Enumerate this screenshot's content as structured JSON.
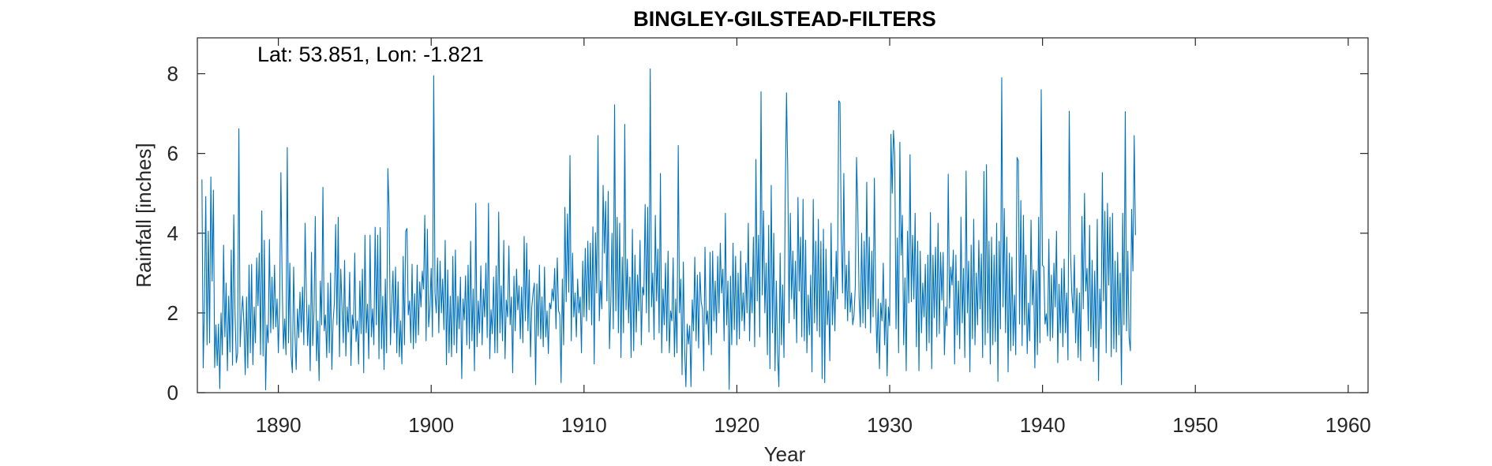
{
  "chart_data": {
    "type": "line",
    "title": "BINGLEY-GILSTEAD-FILTERS",
    "annotation": "Lat: 53.851, Lon: -1.821",
    "xlabel": "Year",
    "ylabel": "Rainfall [inches]",
    "xlim": [
      1884.7,
      1961.3
    ],
    "ylim": [
      0,
      8.9
    ],
    "xticks": [
      1890,
      1900,
      1910,
      1920,
      1930,
      1940,
      1950,
      1960
    ],
    "yticks": [
      0,
      2,
      4,
      6,
      8
    ],
    "grid": false,
    "box": true,
    "line_color": "#0072BD",
    "series": [
      {
        "x_start": 1885.0,
        "x_step": 0.08333,
        "values": [
          5.35,
          0.62,
          2.3,
          4.92,
          1.2,
          4.05,
          1.25,
          5.41,
          2.8,
          5.08,
          0.63,
          1.7,
          0.68,
          1.72,
          0.1,
          2.0,
          0.95,
          3.7,
          1.4,
          2.75,
          0.55,
          2.42,
          1.02,
          3.58,
          0.69,
          4.46,
          1.98,
          0.75,
          1.0,
          6.62,
          1.15,
          1.93,
          2.42,
          1.7,
          0.45,
          2.4,
          0.62,
          3.2,
          1.0,
          3.22,
          0.7,
          2.15,
          1.25,
          3.38,
          2.18,
          3.5,
          0.95,
          4.56,
          0.92,
          3.82,
          0.07,
          1.7,
          1.25,
          3.84,
          1.5,
          2.9,
          1.6,
          3.2,
          1.65,
          2.35,
          1.0,
          2.25,
          5.52,
          2.73,
          1.1,
          1.85,
          0.95,
          6.15,
          1.25,
          3.25,
          0.93,
          0.5,
          3.15,
          1.5,
          0.58,
          2.1,
          1.38,
          2.52,
          1.52,
          2.65,
          1.2,
          4.25,
          2.42,
          1.18,
          2.2,
          0.55,
          3.52,
          1.18,
          2.05,
          4.42,
          0.8,
          1.8,
          0.3,
          2.8,
          1.7,
          5.15,
          1.55,
          1.95,
          0.88,
          2.75,
          1.0,
          3.0,
          0.58,
          1.8,
          2.25,
          4.22,
          1.7,
          4.4,
          0.9,
          3.1,
          2.15,
          1.25,
          3.32,
          0.92,
          2.15,
          1.52,
          3.02,
          0.68,
          1.95,
          1.6,
          3.5,
          1.28,
          1.8,
          0.72,
          2.8,
          1.48,
          3.1,
          0.5,
          3.95,
          1.5,
          2.22,
          0.85,
          3.95,
          1.4,
          2.1,
          1.2,
          4.15,
          1.7,
          3.95,
          0.85,
          4.14,
          1.1,
          2.42,
          0.58,
          2.85,
          1.0,
          5.62,
          4.5,
          1.2,
          2.2,
          3.05,
          1.5,
          3.15,
          1.0,
          2.78,
          0.9,
          1.8,
          0.72,
          3.42,
          1.2,
          4.05,
          4.12,
          1.95,
          2.3,
          1.25,
          3.22,
          1.1,
          2.48,
          1.25,
          3.2,
          1.45,
          2.78,
          2.15,
          3.05,
          2.6,
          4.45,
          1.3,
          4.1,
          1.65,
          2.15,
          3.12,
          1.4,
          7.95,
          2.5,
          2.0,
          3.38,
          1.5,
          3.3,
          2.0,
          2.85,
          1.58,
          3.82,
          0.7,
          3.08,
          1.0,
          2.42,
          0.9,
          3.42,
          1.2,
          3.58,
          1.0,
          2.42,
          1.6,
          2.9,
          0.35,
          2.35,
          1.82,
          2.93,
          1.2,
          3.2,
          1.1,
          3.8,
          1.3,
          2.6,
          0.55,
          4.75,
          1.15,
          2.3,
          1.5,
          3.18,
          1.2,
          2.6,
          1.9,
          3.25,
          1.38,
          4.75,
          0.85,
          2.08,
          1.48,
          2.9,
          1.0,
          3.18,
          1.0,
          4.53,
          1.5,
          2.68,
          1.3,
          3.82,
          0.85,
          2.32,
          1.9,
          3.68,
          1.7,
          2.4,
          0.5,
          2.92,
          1.55,
          3.1,
          2.08,
          2.68,
          1.35,
          2.65,
          1.25,
          3.92,
          1.8,
          3.75,
          1.55,
          3.08,
          0.9,
          2.15,
          2.5,
          2.75,
          0.2,
          2.73,
          1.42,
          3.2,
          1.35,
          2.4,
          1.15,
          3.15,
          1.4,
          2.05,
          0.98,
          2.25,
          2.1,
          2.6,
          2.3,
          3.12,
          1.6,
          3.38,
          2.06,
          1.95,
          0.25,
          2.85,
          1.2,
          4.65,
          2.28,
          4.48,
          2.52,
          5.95,
          1.3,
          3.5,
          1.9,
          2.5,
          1.4,
          2.85,
          2.0,
          2.4,
          1.0,
          3.3,
          1.9,
          3.62,
          1.8,
          3.8,
          2.08,
          3.75,
          1.7,
          4.16,
          0.72,
          4.01,
          2.5,
          6.45,
          1.8,
          2.8,
          2.1,
          5.2,
          3.5,
          4.8,
          2.3,
          5.05,
          1.1,
          2.2,
          4.0,
          1.6,
          7.22,
          2.05,
          4.4,
          1.5,
          4.25,
          0.88,
          3.4,
          1.5,
          6.73,
          2.08,
          3.35,
          1.75,
          2.9,
          0.88,
          4.1,
          1.05,
          3.45,
          1.52,
          2.95,
          2.05,
          3.82,
          1.2,
          2.65,
          2.45,
          4.72,
          2.0,
          4.65,
          1.52,
          8.12,
          2.15,
          3.0,
          1.33,
          4.45,
          2.3,
          3.6,
          1.5,
          5.5,
          1.0,
          2.6,
          1.7,
          3.25,
          1.3,
          3.55,
          1.0,
          2.05,
          1.8,
          3.38,
          0.9,
          2.35,
          1.0,
          6.2,
          2.0,
          2.85,
          0.45,
          3.28,
          1.1,
          0.15,
          1.72,
          1.22,
          1.68,
          0.15,
          2.33,
          1.55,
          3.4,
          1.3,
          2.95,
          1.12,
          3.02,
          2.28,
          2.1,
          0.55,
          3.65,
          1.72,
          2.05,
          1.2,
          3.52,
          0.95,
          3.55,
          1.8,
          2.8,
          1.5,
          3.42,
          2.0,
          3.75,
          2.5,
          3.1,
          1.3,
          4.5,
          1.7,
          2.8,
          0.08,
          2.92,
          1.2,
          3.75,
          1.58,
          3.42,
          1.2,
          3.0,
          1.35,
          3.55,
          1.8,
          2.5,
          1.55,
          3.25,
          2.0,
          4.25,
          1.3,
          2.9,
          2.0,
          3.9,
          1.15,
          5.85,
          2.3,
          3.95,
          1.4,
          7.55,
          2.45,
          4.56,
          2.0,
          3.25,
          0.95,
          4.2,
          0.6,
          5.2,
          1.5,
          4.0,
          0.55,
          2.8,
          1.0,
          0.15,
          3.5,
          1.2,
          2.7,
          0.88,
          4.9,
          7.52,
          5.52,
          1.75,
          4.5,
          2.35,
          3.55,
          1.85,
          3.3,
          1.25,
          4.9,
          2.55,
          3.9,
          1.4,
          4.85,
          1.3,
          3.82,
          1.0,
          2.45,
          1.45,
          2.95,
          0.52,
          4.85,
          1.75,
          3.8,
          1.55,
          4.35,
          1.4,
          3.8,
          0.35,
          4.1,
          0.25,
          3.6,
          1.7,
          2.55,
          0.8,
          4.25,
          1.7,
          2.9,
          1.55,
          3.55,
          2.35,
          7.32,
          7.28,
          4.0,
          2.5,
          5.5,
          2.1,
          3.2,
          1.8,
          3.55,
          2.02,
          2.5,
          1.7,
          1.95,
          2.65,
          5.9,
          4.55,
          2.38,
          1.65,
          4.0,
          1.75,
          3.8,
          1.62,
          5.28,
          2.1,
          3.9,
          1.5,
          3.55,
          1.9,
          5.38,
          2.3,
          1.0,
          2.35,
          0.6,
          2.25,
          1.8,
          3.25,
          1.2,
          2.35,
          0.42,
          2.15,
          1.68,
          6.48,
          5.0,
          6.58,
          5.95,
          1.6,
          3.88,
          1.0,
          6.28,
          3.45,
          4.45,
          1.2,
          2.88,
          0.55,
          4.05,
          2.25,
          5.97,
          2.28,
          3.95,
          2.35,
          4.5,
          1.15,
          3.8,
          0.55,
          3.55,
          1.5,
          2.75,
          1.9,
          3.22,
          1.05,
          3.45,
          1.25,
          4.52,
          0.6,
          3.45,
          1.88,
          3.65,
          1.4,
          4.25,
          1.48,
          3.52,
          2.32,
          3.52,
          0.95,
          2.15,
          1.68,
          5.48,
          2.12,
          3.15,
          2.7,
          3.58,
          0.72,
          3.45,
          1.45,
          2.8,
          1.1,
          4.4,
          1.75,
          3.12,
          0.88,
          5.56,
          2.0,
          3.3,
          0.52,
          3.7,
          1.35,
          4.35,
          1.2,
          3.0,
          1.7,
          3.82,
          2.1,
          3.48,
          0.88,
          5.55,
          1.2,
          5.72,
          1.5,
          3.8,
          0.72,
          3.9,
          1.2,
          3.45,
          1.28,
          4.25,
          0.28,
          3.8,
          1.6,
          7.9,
          2.15,
          4.62,
          1.5,
          3.9,
          0.52,
          3.5,
          1.05,
          3.4,
          1.18,
          2.45,
          0.95,
          5.9,
          5.82,
          1.72,
          4.82,
          1.18,
          4.45,
          1.7,
          3.45,
          0.98,
          2.25,
          1.3,
          4.33,
          2.2,
          3.08,
          0.62,
          3.05,
          0.95,
          4.4,
          1.25,
          7.6,
          3.2,
          3.15,
          1.72,
          1.98,
          1.42,
          3.85,
          1.3,
          2.95,
          1.38,
          3.25,
          2.15,
          4.05,
          0.75,
          2.72,
          1.5,
          3.12,
          1.15,
          3.35,
          1.5,
          2.5,
          0.82,
          7.06,
          3.52,
          2.5,
          2.0,
          3.45,
          1.25,
          2.62,
          0.88,
          2.5,
          0.8,
          4.42,
          2.1,
          5.0,
          2.55,
          3.12,
          1.55,
          4.2,
          1.15,
          3.32,
          0.78,
          3.05,
          1.12,
          4.35,
          0.3,
          2.6,
          1.6,
          5.52,
          2.3,
          4.55,
          1.0,
          4.75,
          2.7,
          4.4,
          0.9,
          4.5,
          1.1,
          3.3,
          1.02,
          3.52,
          1.45,
          3.0,
          0.2,
          4.5,
          1.7,
          7.05,
          1.55,
          3.55,
          1.38,
          1.05,
          4.6,
          3.05,
          6.45,
          3.95
        ]
      }
    ]
  }
}
